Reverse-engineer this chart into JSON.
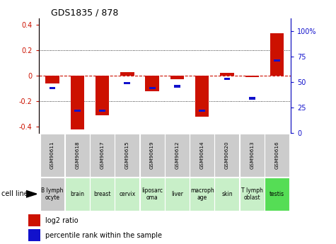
{
  "title": "GDS1835 / 878",
  "gsm_labels": [
    "GSM90611",
    "GSM90618",
    "GSM90617",
    "GSM90615",
    "GSM90619",
    "GSM90612",
    "GSM90614",
    "GSM90620",
    "GSM90613",
    "GSM90616"
  ],
  "cell_lines": [
    "B lymph\nocyte",
    "brain",
    "breast",
    "cervix",
    "liposarc\noma",
    "liver",
    "macroph\nage",
    "skin",
    "T lymph\noblast",
    "testis"
  ],
  "cell_bg_colors": [
    "#c8c8c8",
    "#c8efc8",
    "#c8efc8",
    "#c8efc8",
    "#c8efc8",
    "#c8efc8",
    "#c8efc8",
    "#c8efc8",
    "#c8efc8",
    "#55dd55"
  ],
  "log2_ratio": [
    -0.06,
    -0.42,
    -0.31,
    0.03,
    -0.12,
    -0.03,
    -0.32,
    0.02,
    -0.01,
    0.33
  ],
  "percentile_rank": [
    44,
    22,
    22,
    49,
    44,
    46,
    22,
    53,
    34,
    71
  ],
  "ylim_left": [
    -0.45,
    0.45
  ],
  "ylim_right": [
    0,
    112.5
  ],
  "yticks_left": [
    -0.4,
    -0.2,
    0.0,
    0.2,
    0.4
  ],
  "yticks_right": [
    0,
    25,
    50,
    75,
    100
  ],
  "bar_color": "#cc1100",
  "dot_color": "#1111cc",
  "legend_red": "log2 ratio",
  "legend_blue": "percentile rank within the sample",
  "cell_line_label": "cell line"
}
